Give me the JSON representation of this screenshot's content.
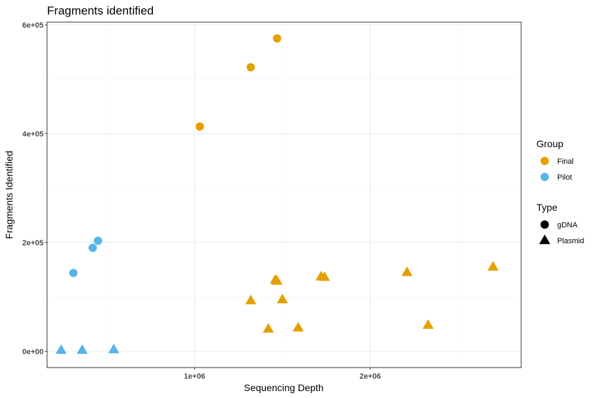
{
  "chart_data": {
    "type": "scatter",
    "title": "Fragments identified",
    "xlabel": "Sequencing Depth",
    "ylabel": "Fragments Identified",
    "xlim": [
      160000,
      2860000
    ],
    "ylim": [
      -30000,
      605000
    ],
    "x_ticks": [
      {
        "value": 1000000,
        "label": "1e+06"
      },
      {
        "value": 2000000,
        "label": "2e+06"
      }
    ],
    "x_minor": [
      500000,
      1500000,
      2500000
    ],
    "y_ticks": [
      {
        "value": 0,
        "label": "0e+00"
      },
      {
        "value": 200000,
        "label": "2e+05"
      },
      {
        "value": 400000,
        "label": "4e+05"
      },
      {
        "value": 600000,
        "label": "6e+05"
      }
    ],
    "y_minor": [
      100000,
      300000,
      500000
    ],
    "grid": true,
    "legend_position": "right",
    "colors": {
      "Final": "#E69F00",
      "Pilot": "#56B4E9"
    },
    "legends": [
      {
        "title": "Group",
        "entries": [
          {
            "label": "Final",
            "shape": "circle",
            "color": "#E69F00"
          },
          {
            "label": "Pilot",
            "shape": "circle",
            "color": "#56B4E9"
          }
        ]
      },
      {
        "title": "Type",
        "entries": [
          {
            "label": "gDNA",
            "shape": "circle",
            "color": "#000000"
          },
          {
            "label": "Plasmid",
            "shape": "triangle",
            "color": "#000000"
          }
        ]
      }
    ],
    "series": [
      {
        "group": "Final",
        "type": "gDNA",
        "points": [
          {
            "x": 1030000,
            "y": 413000
          },
          {
            "x": 1320000,
            "y": 522000
          },
          {
            "x": 1470000,
            "y": 575000
          }
        ]
      },
      {
        "group": "Final",
        "type": "Plasmid",
        "points": [
          {
            "x": 1320000,
            "y": 93000
          },
          {
            "x": 1420000,
            "y": 41000
          },
          {
            "x": 1460000,
            "y": 131000
          },
          {
            "x": 1470000,
            "y": 129000
          },
          {
            "x": 1500000,
            "y": 95000
          },
          {
            "x": 1590000,
            "y": 43000
          },
          {
            "x": 1720000,
            "y": 137000
          },
          {
            "x": 1740000,
            "y": 136000
          },
          {
            "x": 2210000,
            "y": 145000
          },
          {
            "x": 2330000,
            "y": 48000
          },
          {
            "x": 2700000,
            "y": 155000
          }
        ]
      },
      {
        "group": "Pilot",
        "type": "gDNA",
        "points": [
          {
            "x": 310000,
            "y": 144000
          },
          {
            "x": 420000,
            "y": 190000
          },
          {
            "x": 450000,
            "y": 203000
          }
        ]
      },
      {
        "group": "Pilot",
        "type": "Plasmid",
        "points": [
          {
            "x": 240000,
            "y": 2000
          },
          {
            "x": 360000,
            "y": 2000
          },
          {
            "x": 540000,
            "y": 3000
          }
        ]
      }
    ]
  }
}
